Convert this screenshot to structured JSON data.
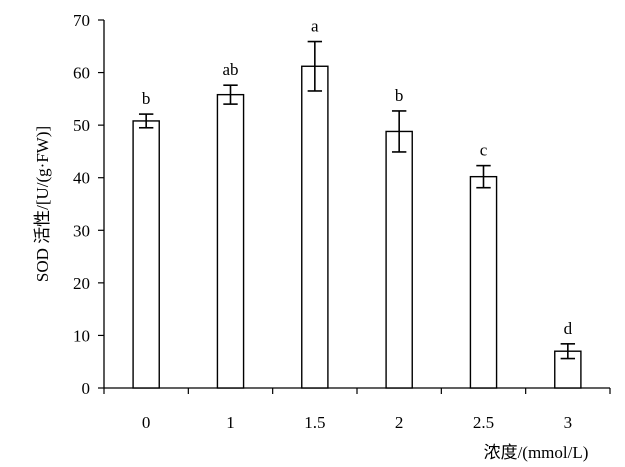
{
  "chart_data": {
    "type": "bar",
    "categories": [
      "0",
      "1",
      "1.5",
      "2",
      "2.5",
      "3"
    ],
    "values": [
      50.8,
      55.8,
      61.2,
      48.8,
      40.2,
      7.0
    ],
    "errors": [
      1.3,
      1.8,
      4.7,
      3.9,
      2.1,
      1.4
    ],
    "significance": [
      "b",
      "ab",
      "a",
      "b",
      "c",
      "d"
    ],
    "title": "",
    "xlabel": "浓度/(mmol/L)",
    "ylabel": "SOD 活性/[U/(g·FW)]",
    "ylim": [
      0,
      70
    ],
    "yticks": [
      0,
      10,
      20,
      30,
      40,
      50,
      60,
      70
    ],
    "grid": false,
    "legend": "none",
    "bar_fill": "#ffffff",
    "bar_stroke": "#000000"
  }
}
